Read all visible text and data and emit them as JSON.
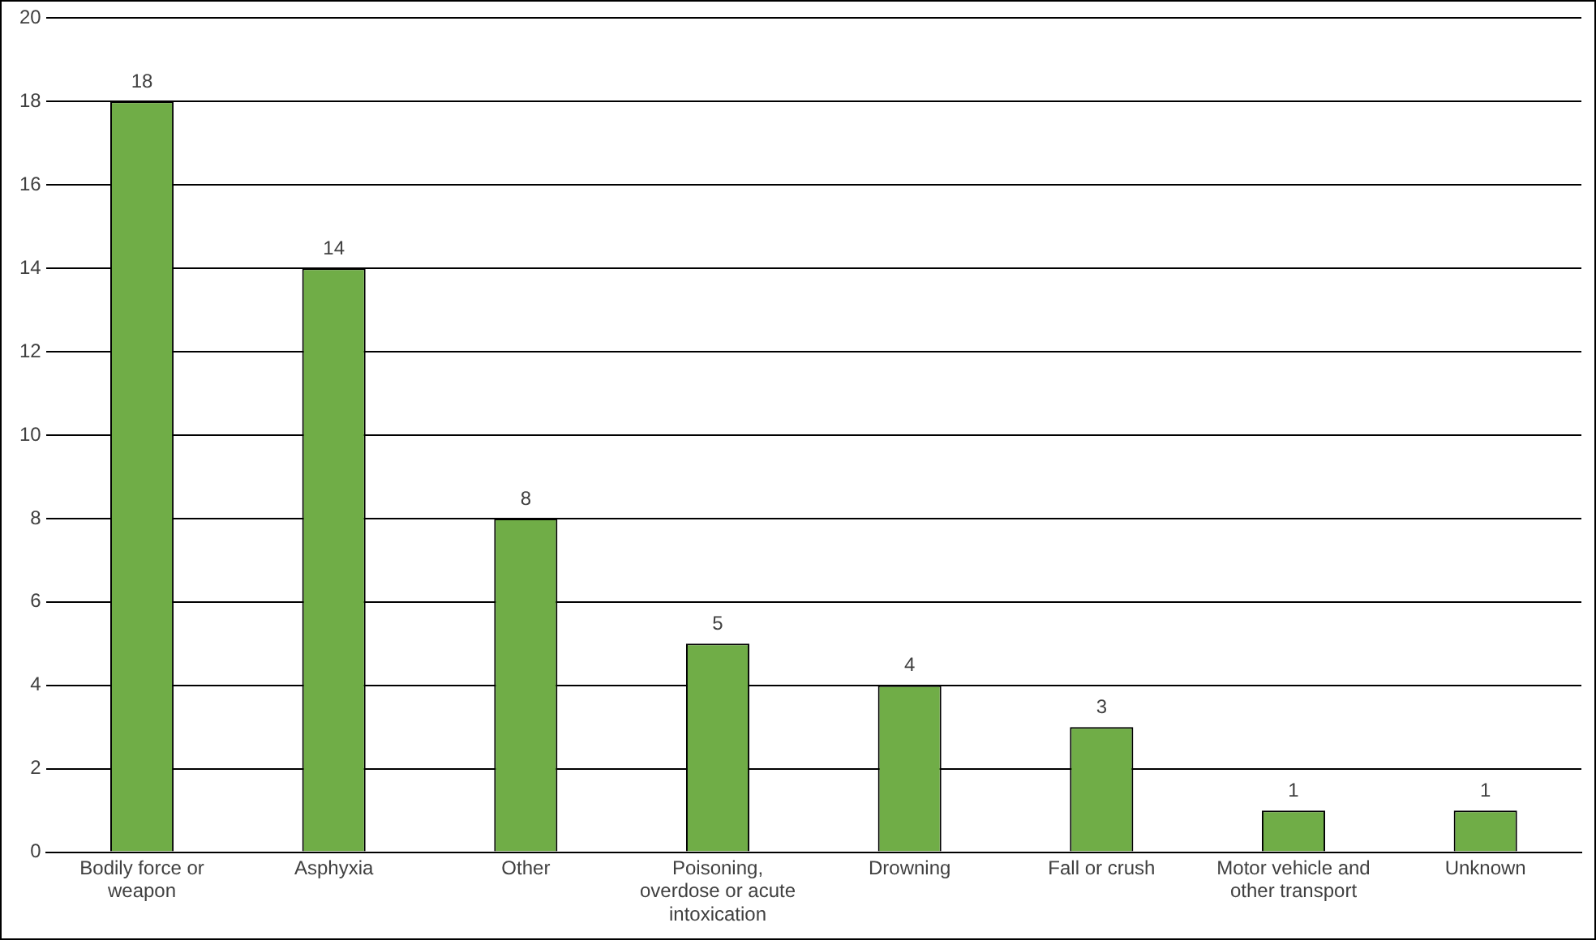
{
  "chart_data": {
    "type": "bar",
    "categories": [
      "Bodily force or weapon",
      "Asphyxia",
      "Other",
      "Poisoning, overdose or acute intoxication",
      "Drowning",
      "Fall or crush",
      "Motor vehicle and other transport",
      "Unknown"
    ],
    "values": [
      18,
      14,
      8,
      5,
      4,
      3,
      1,
      1
    ],
    "color": "#70ad47",
    "ylim": [
      0,
      20
    ],
    "yticks": [
      0,
      2,
      4,
      6,
      8,
      10,
      12,
      14,
      16,
      18,
      20
    ],
    "grid": "y",
    "legend": false,
    "data_labels": true
  }
}
